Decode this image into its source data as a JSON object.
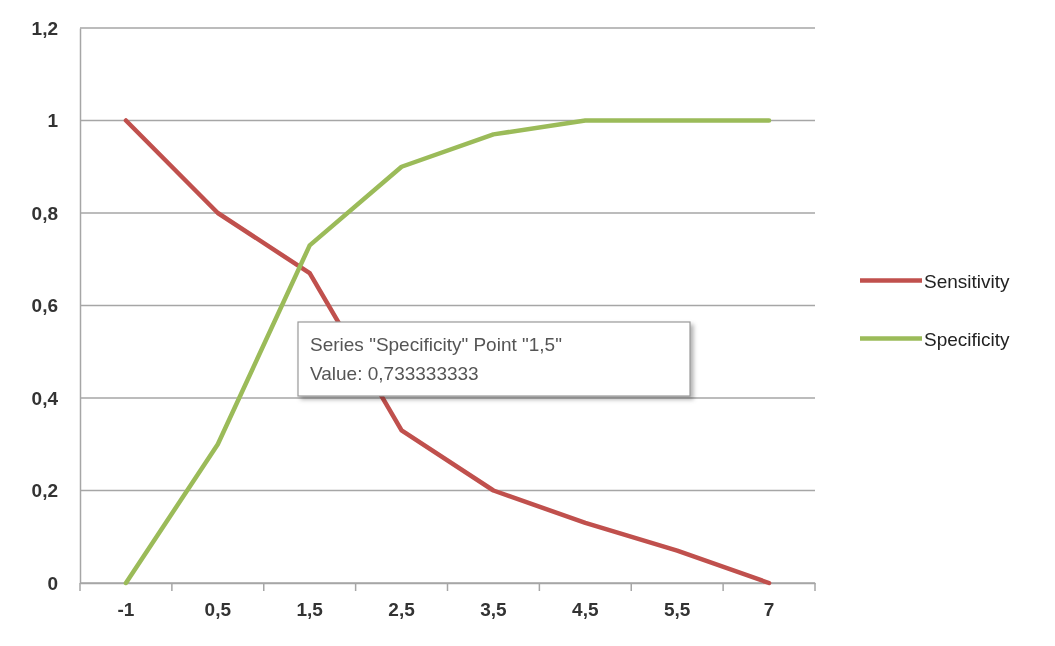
{
  "chart_data": {
    "type": "line",
    "categories": [
      "-1",
      "0,5",
      "1,5",
      "2,5",
      "3,5",
      "4,5",
      "5,5",
      "7"
    ],
    "series": [
      {
        "name": "Sensitivity",
        "color": "#c0504d",
        "values": [
          1,
          0.8,
          0.67,
          0.33,
          0.2,
          0.13,
          0.07,
          0
        ]
      },
      {
        "name": "Specificity",
        "color": "#9bbb59",
        "values": [
          0,
          0.3,
          0.73,
          0.9,
          0.97,
          1,
          1,
          1
        ]
      }
    ],
    "ylim": [
      0,
      1.2
    ],
    "yticks": [
      {
        "value": 0,
        "label": "0"
      },
      {
        "value": 0.2,
        "label": "0,2"
      },
      {
        "value": 0.4,
        "label": "0,4"
      },
      {
        "value": 0.6,
        "label": "0,6"
      },
      {
        "value": 0.8,
        "label": "0,8"
      },
      {
        "value": 1,
        "label": "1"
      },
      {
        "value": 1.2,
        "label": "1,2"
      }
    ],
    "grid": "y",
    "legend": "right",
    "marker": "none",
    "line_style": "solid",
    "annotations": [
      "Series \"Specificity\" Point \"1,5\"\nValue: 0,733333333"
    ]
  }
}
